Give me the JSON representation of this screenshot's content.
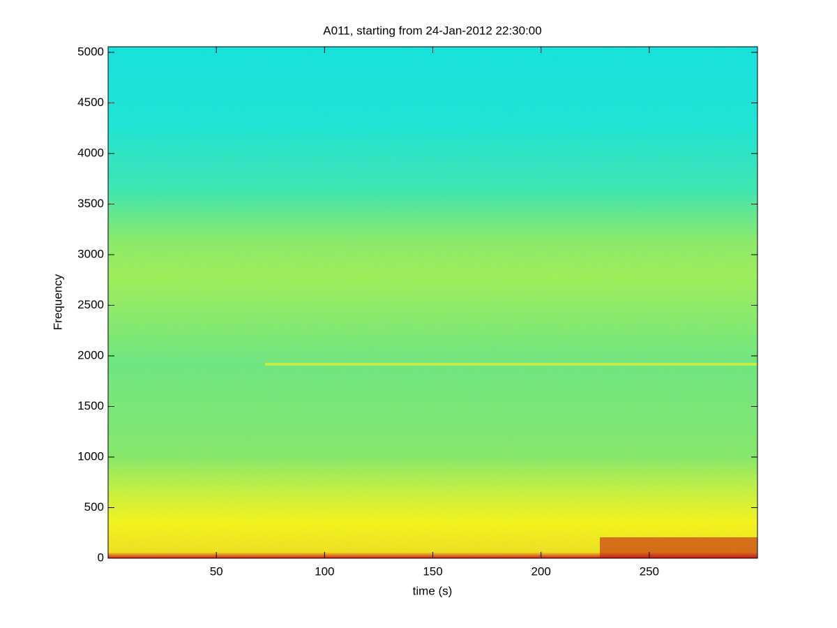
{
  "chart_data": {
    "type": "spectrogram",
    "title": "A011, starting from 24-Jan-2012 22:30:00",
    "x_label": "time (s)",
    "y_label": "Frequency",
    "xlim": [
      0,
      300
    ],
    "xticks": [
      50,
      100,
      150,
      200,
      250
    ],
    "ylim": [
      0,
      5055
    ],
    "yticks": [
      0,
      500,
      1000,
      1500,
      2000,
      2500,
      3000,
      3500,
      4000,
      4500,
      5000
    ]
  }
}
